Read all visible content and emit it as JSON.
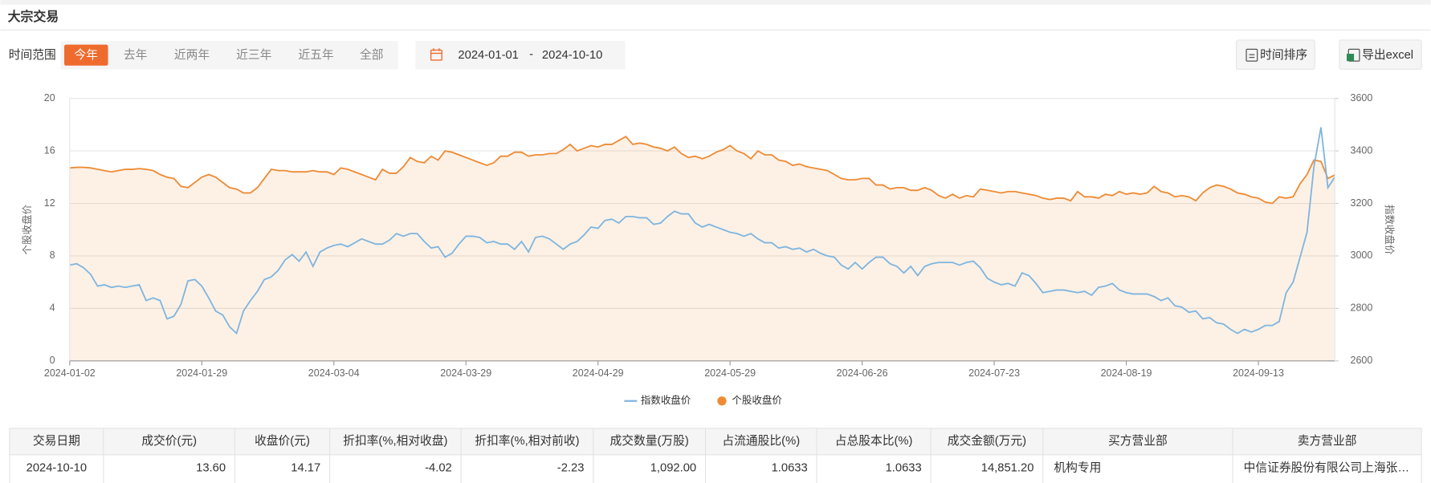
{
  "header": {
    "title": "大宗交易"
  },
  "filters": {
    "label": "时间范围",
    "options": [
      "今年",
      "去年",
      "近两年",
      "近三年",
      "近五年",
      "全部"
    ]
  },
  "date_range": {
    "start": "2024-01-01",
    "separator": "-",
    "end": "2024-10-10"
  },
  "buttons": [
    "时间排序",
    "导出excel"
  ],
  "chart_data": {
    "type": "line",
    "ylabel": "个股收盘价",
    "y2label": "指数收盘价",
    "categories": [
      "2024-01-02",
      null,
      null,
      null,
      null,
      null,
      null,
      null,
      null,
      null,
      null,
      null,
      null,
      null,
      null,
      null,
      null,
      null,
      null,
      "2024-01-29",
      null,
      null,
      null,
      null,
      null,
      null,
      null,
      null,
      null,
      null,
      null,
      null,
      null,
      null,
      null,
      null,
      null,
      null,
      "2024-03-04",
      null,
      null,
      null,
      null,
      null,
      null,
      null,
      null,
      null,
      null,
      null,
      null,
      null,
      null,
      null,
      null,
      null,
      null,
      "2024-03-29",
      null,
      null,
      null,
      null,
      null,
      null,
      null,
      null,
      null,
      null,
      null,
      null,
      null,
      null,
      null,
      null,
      null,
      null,
      "2024-04-29",
      null,
      null,
      null,
      null,
      null,
      null,
      null,
      null,
      null,
      null,
      null,
      null,
      null,
      null,
      null,
      null,
      null,
      null,
      "2024-05-29",
      null,
      null,
      null,
      null,
      null,
      null,
      null,
      null,
      null,
      null,
      null,
      null,
      null,
      null,
      null,
      null,
      null,
      null,
      "2024-06-26",
      null,
      null,
      null,
      null,
      null,
      null,
      null,
      null,
      null,
      null,
      null,
      null,
      null,
      null,
      null,
      null,
      null,
      null,
      "2024-07-23",
      null,
      null,
      null,
      null,
      null,
      null,
      null,
      null,
      null,
      null,
      null,
      null,
      null,
      null,
      null,
      null,
      null,
      null,
      "2024-08-19",
      null,
      null,
      null,
      null,
      null,
      null,
      null,
      null,
      null,
      null,
      null,
      null,
      null,
      null,
      null,
      null,
      null,
      null,
      "2024-09-13",
      null,
      null,
      null,
      null,
      null,
      null,
      null,
      null,
      null,
      null,
      null
    ],
    "series": [
      {
        "name": "指数收盘价",
        "color": "#7fb5de",
        "axis": "y2",
        "values": [
          2965,
          2970,
          2955,
          2930,
          2885,
          2890,
          2880,
          2885,
          2880,
          2885,
          2890,
          2830,
          2840,
          2830,
          2760,
          2770,
          2815,
          2905,
          2910,
          2885,
          2840,
          2790,
          2775,
          2730,
          2705,
          2790,
          2830,
          2865,
          2910,
          2920,
          2945,
          2985,
          3005,
          2980,
          3015,
          2960,
          3015,
          3030,
          3040,
          3045,
          3035,
          3050,
          3065,
          3055,
          3045,
          3045,
          3060,
          3085,
          3075,
          3085,
          3085,
          3055,
          3030,
          3035,
          2995,
          3010,
          3045,
          3075,
          3075,
          3070,
          3050,
          3055,
          3045,
          3045,
          3025,
          3055,
          3015,
          3070,
          3075,
          3065,
          3045,
          3025,
          3045,
          3055,
          3080,
          3110,
          3105,
          3135,
          3140,
          3125,
          3150,
          3150,
          3145,
          3145,
          3120,
          3125,
          3150,
          3170,
          3160,
          3160,
          3125,
          3110,
          3120,
          3110,
          3100,
          3090,
          3085,
          3075,
          3085,
          3065,
          3050,
          3050,
          3030,
          3035,
          3025,
          3030,
          3015,
          3025,
          3010,
          3000,
          2995,
          2965,
          2950,
          2975,
          2950,
          2975,
          2995,
          2995,
          2970,
          2960,
          2935,
          2960,
          2925,
          2960,
          2970,
          2975,
          2975,
          2975,
          2965,
          2975,
          2980,
          2955,
          2915,
          2900,
          2890,
          2895,
          2885,
          2935,
          2925,
          2895,
          2860,
          2865,
          2870,
          2870,
          2865,
          2860,
          2865,
          2850,
          2880,
          2885,
          2895,
          2870,
          2860,
          2855,
          2855,
          2855,
          2845,
          2830,
          2840,
          2810,
          2805,
          2785,
          2790,
          2760,
          2765,
          2745,
          2740,
          2720,
          2705,
          2720,
          2710,
          2720,
          2735,
          2735,
          2750,
          2860,
          2900,
          2995,
          3090,
          3340,
          3490,
          3260,
          3300
        ]
      },
      {
        "name": "个股收盘价",
        "color": "#ee8b35",
        "area": true,
        "values": [
          14.7,
          14.75,
          14.75,
          14.7,
          14.6,
          14.5,
          14.4,
          14.5,
          14.6,
          14.6,
          14.65,
          14.6,
          14.5,
          14.2,
          14.0,
          13.9,
          13.3,
          13.2,
          13.6,
          14.0,
          14.2,
          14.0,
          13.6,
          13.2,
          13.1,
          12.8,
          12.8,
          13.2,
          13.9,
          14.6,
          14.5,
          14.5,
          14.4,
          14.4,
          14.4,
          14.5,
          14.4,
          14.4,
          14.2,
          14.7,
          14.6,
          14.4,
          14.2,
          14.0,
          13.8,
          14.6,
          14.3,
          14.3,
          14.8,
          15.5,
          15.2,
          15.1,
          15.6,
          15.3,
          16.0,
          15.9,
          15.7,
          15.5,
          15.3,
          15.1,
          14.9,
          15.1,
          15.6,
          15.6,
          15.9,
          15.9,
          15.6,
          15.7,
          15.7,
          15.8,
          15.8,
          16.1,
          16.5,
          16.0,
          16.2,
          16.4,
          16.3,
          16.5,
          16.5,
          16.8,
          17.1,
          16.5,
          16.6,
          16.5,
          16.3,
          16.2,
          16.0,
          16.3,
          15.8,
          15.5,
          15.6,
          15.4,
          15.6,
          15.9,
          16.1,
          16.4,
          16.0,
          15.8,
          15.4,
          16.0,
          15.7,
          15.7,
          15.3,
          15.2,
          14.9,
          15.0,
          14.8,
          14.7,
          14.6,
          14.5,
          14.2,
          13.9,
          13.8,
          13.8,
          13.9,
          13.9,
          13.4,
          13.4,
          13.1,
          13.2,
          13.2,
          13.0,
          13.0,
          13.2,
          13.0,
          12.6,
          12.4,
          12.7,
          12.4,
          12.6,
          12.5,
          13.1,
          13.0,
          12.9,
          12.8,
          12.9,
          12.9,
          12.8,
          12.7,
          12.6,
          12.4,
          12.3,
          12.4,
          12.4,
          12.2,
          12.9,
          12.5,
          12.5,
          12.4,
          12.7,
          12.6,
          12.9,
          12.7,
          12.8,
          12.7,
          12.8,
          13.3,
          12.9,
          12.8,
          12.5,
          12.6,
          12.5,
          12.2,
          12.8,
          13.2,
          13.4,
          13.3,
          13.1,
          12.8,
          12.7,
          12.5,
          12.4,
          12.1,
          12.0,
          12.5,
          12.4,
          12.5,
          13.5,
          14.2,
          15.3,
          15.2,
          13.9,
          14.17
        ]
      }
    ],
    "ylim": [
      0,
      20
    ],
    "yticks": [
      0,
      4,
      8,
      12,
      16,
      20
    ],
    "y2lim": [
      2600,
      3600
    ],
    "y2ticks": [
      2600,
      2800,
      3000,
      3200,
      3400,
      3600
    ],
    "grid": true,
    "legend": "bottom"
  },
  "table": {
    "columns": [
      "交易日期",
      "成交价(元)",
      "收盘价(元)",
      "折扣率(%,相对收盘)",
      "折扣率(%,相对前收)",
      "成交数量(万股)",
      "占流通股比(%)",
      "占总股本比(%)",
      "成交金额(万元)",
      "买方营业部",
      "卖方营业部"
    ],
    "rows": [
      [
        "2024-10-10",
        "13.60",
        "14.17",
        "-4.02",
        "-2.23",
        "1,092.00",
        "1.0633",
        "1.0633",
        "14,851.20",
        "机构专用",
        "中信证券股份有限公司上海张…"
      ]
    ]
  }
}
